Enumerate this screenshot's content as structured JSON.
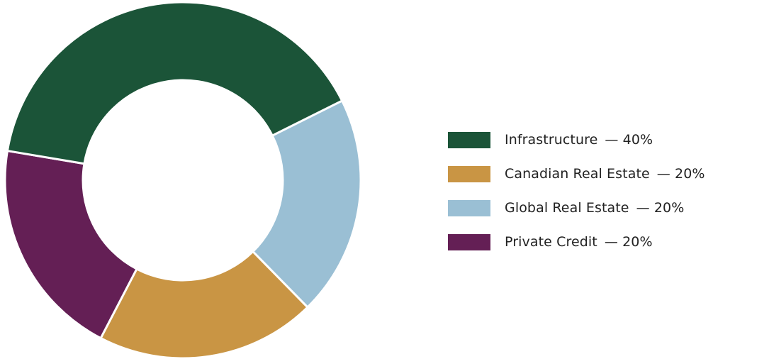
{
  "chart_data": {
    "type": "pie",
    "variant": "donut",
    "categories": [
      "Infrastructure",
      "Canadian Real Estate",
      "Global Real Estate",
      "Private Credit"
    ],
    "values": [
      40,
      20,
      20,
      20
    ],
    "value_labels": [
      "— 40%",
      "— 20%",
      "— 20%",
      "— 20%"
    ],
    "colors": [
      "#1b5438",
      "#c99544",
      "#9abfd4",
      "#641f55"
    ],
    "slice_order": [
      "Global Real Estate",
      "Canadian Real Estate",
      "Private Credit",
      "Infrastructure"
    ],
    "title": "",
    "legend_position": "right"
  }
}
